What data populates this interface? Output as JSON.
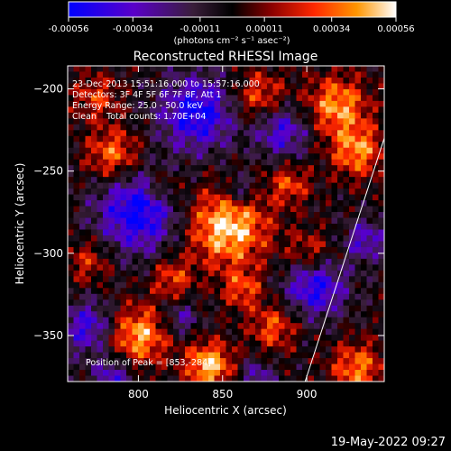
{
  "chart_data": {
    "type": "heatmap",
    "title": "Reconstructed RHESSI Image",
    "xlabel": "Heliocentric X (arcsec)",
    "ylabel": "Heliocentric Y (arcsec)",
    "xlim": [
      758,
      946
    ],
    "ylim": [
      -378,
      -186
    ],
    "x_ticks": [
      800,
      850,
      900
    ],
    "y_ticks": [
      -200,
      -250,
      -300,
      -350
    ],
    "colorbar": {
      "range": [
        -0.00056,
        0.00056
      ],
      "tick_values": [
        -0.00056,
        -0.00034,
        -0.00011,
        0.00011,
        0.00034,
        0.00056
      ],
      "tick_labels": [
        "-0.00056",
        "-0.00034",
        "-0.00011",
        "0.00011",
        "0.00034",
        "0.00056"
      ],
      "unit_label": "(photons cm⁻² s⁻¹ asec⁻²)",
      "colormap": [
        "#0000ff",
        "#5a00c8",
        "#3a1e3a",
        "#000000",
        "#8b0000",
        "#ff2800",
        "#ff9600",
        "#ffffff"
      ]
    },
    "annotations": {
      "time": "23-Dec-2013 15:51:16.000 to 15:57:16.000",
      "detectors": "Detectors: 3F 4F 5F 6F 7F 8F, Att 1",
      "energy": "Energy Range: 25.0 - 50.0 keV",
      "method": "Clean",
      "counts": "Total counts: 1.70E+04",
      "peak": "Position of Peak = [853,-284]"
    },
    "limb_line": [
      [
        899,
        -378
      ],
      [
        946,
        -230
      ]
    ],
    "grid": false,
    "legend": "none"
  },
  "footer": {
    "timestamp": "19-May-2022 09:27"
  }
}
